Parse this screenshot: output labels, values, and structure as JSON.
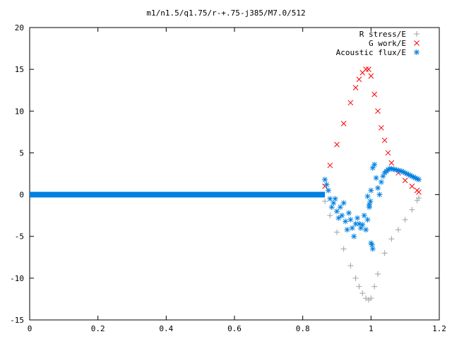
{
  "chart_data": {
    "type": "scatter",
    "title": "m1/n1.5/q1.75/r-+.75-j385/M7.0/512",
    "xlabel": "",
    "ylabel": "",
    "xlim": [
      0,
      1.2
    ],
    "ylim": [
      -15,
      20
    ],
    "grid": false,
    "legend_position": "top-right",
    "x_ticks": [
      "0",
      "0.2",
      "0.4",
      "0.6",
      "0.8",
      "1",
      "1.2"
    ],
    "y_ticks": [
      "-15",
      "-10",
      "-5",
      "0",
      "5",
      "10",
      "15",
      "20"
    ],
    "series": [
      {
        "name": "R stress/E",
        "marker": "plus",
        "color": "#a0a0a0",
        "x": [
          0.865,
          0.88,
          0.9,
          0.92,
          0.94,
          0.955,
          0.965,
          0.975,
          0.985,
          0.993,
          1.0,
          1.01,
          1.02,
          1.04,
          1.06,
          1.08,
          1.1,
          1.12,
          1.135,
          1.14
        ],
        "y": [
          -0.8,
          -2.5,
          -4.5,
          -6.5,
          -8.5,
          -10.0,
          -11.0,
          -11.8,
          -12.4,
          -12.6,
          -12.4,
          -11.0,
          -9.5,
          -7.0,
          -5.3,
          -4.2,
          -3.0,
          -1.8,
          -0.7,
          -0.4
        ]
      },
      {
        "name": "G work/E",
        "marker": "x",
        "color": "#ff0000",
        "x": [
          0.865,
          0.88,
          0.9,
          0.92,
          0.94,
          0.955,
          0.965,
          0.975,
          0.985,
          0.993,
          1.0,
          1.01,
          1.02,
          1.03,
          1.04,
          1.05,
          1.06,
          1.08,
          1.1,
          1.12,
          1.135,
          1.14
        ],
        "y": [
          1.0,
          3.5,
          6.0,
          8.5,
          11.0,
          12.8,
          13.8,
          14.6,
          15.0,
          15.0,
          14.2,
          12.0,
          10.0,
          8.0,
          6.5,
          5.0,
          3.8,
          2.6,
          1.7,
          1.0,
          0.5,
          0.3
        ]
      },
      {
        "name": "Acoustic flux/E",
        "marker": "star",
        "color": "#0080e0",
        "baseline": {
          "x_start": 0.0,
          "x_end": 0.865,
          "y": 0.0
        },
        "x": [
          0.865,
          0.87,
          0.875,
          0.88,
          0.885,
          0.89,
          0.895,
          0.9,
          0.905,
          0.91,
          0.915,
          0.92,
          0.925,
          0.93,
          0.935,
          0.94,
          0.945,
          0.95,
          0.955,
          0.96,
          0.965,
          0.97,
          0.975,
          0.98,
          0.985,
          0.99,
          0.995,
          1.0,
          1.005,
          1.01,
          1.015,
          1.02,
          1.025,
          1.03,
          1.035,
          1.04,
          1.045,
          1.05,
          1.055,
          1.06,
          1.065,
          1.07,
          1.075,
          1.08,
          1.085,
          1.09,
          1.095,
          1.1,
          1.105,
          1.11,
          1.115,
          1.12,
          1.125,
          1.13,
          1.135,
          1.14,
          0.99,
          0.995,
          1.0,
          1.005,
          1.003,
          0.998
        ],
        "y": [
          1.8,
          1.2,
          0.5,
          -0.5,
          -1.5,
          -1.0,
          -0.5,
          -2.0,
          -2.8,
          -1.5,
          -2.5,
          -1.0,
          -3.2,
          -4.2,
          -2.2,
          -3.0,
          -4.0,
          -5.0,
          -3.5,
          -2.8,
          -3.5,
          -4.0,
          -3.6,
          -2.5,
          -4.2,
          -3.0,
          -1.5,
          0.5,
          3.2,
          3.6,
          2.0,
          0.8,
          0.0,
          1.5,
          2.2,
          2.6,
          2.8,
          3.0,
          3.1,
          3.1,
          3.05,
          3.0,
          2.95,
          2.9,
          2.85,
          2.8,
          2.7,
          2.6,
          2.5,
          2.4,
          2.3,
          2.2,
          2.1,
          2.0,
          1.9,
          1.8,
          -0.2,
          -1.2,
          -5.8,
          -6.5,
          -6.0,
          -0.8
        ]
      }
    ]
  }
}
